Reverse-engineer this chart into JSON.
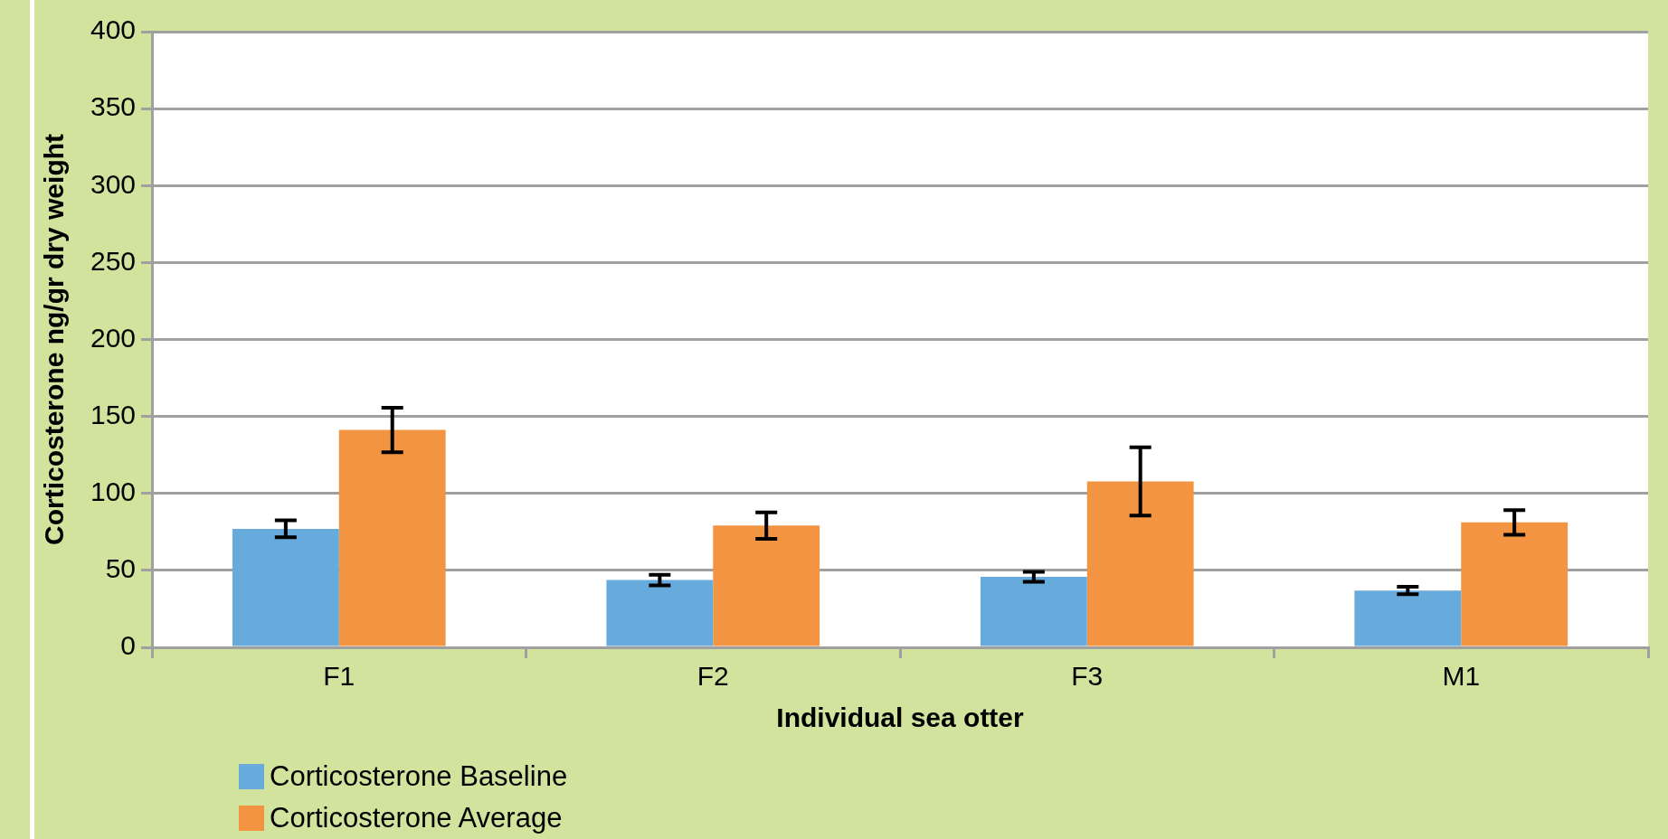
{
  "chart_data": {
    "type": "bar",
    "xlabel": "Individual sea otter",
    "ylabel": "Corticosterone ng/gr dry weight",
    "categories": [
      "F1",
      "F2",
      "F3",
      "M1"
    ],
    "series": [
      {
        "name": "Corticosterone Baseline",
        "color": "#67aadc",
        "values": [
          77,
          43.7,
          45.8,
          36.9
        ],
        "errors": [
          5.5,
          3.5,
          3.2,
          2.4
        ]
      },
      {
        "name": "Corticosterone Average",
        "color": "#f29441",
        "values": [
          141.2,
          79.1,
          107.8,
          81.2
        ],
        "errors": [
          14.5,
          8.6,
          22.2,
          8
        ]
      }
    ],
    "ylim": [
      0,
      400
    ],
    "yticks": [
      0,
      50,
      100,
      150,
      200,
      250,
      300,
      350,
      400
    ],
    "grid": "y",
    "legend": "bottom left"
  }
}
